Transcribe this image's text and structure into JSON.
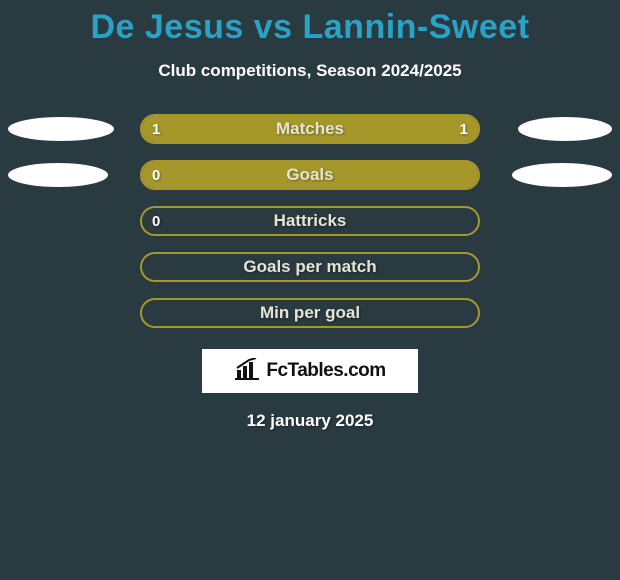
{
  "title": "De Jesus vs Lannin-Sweet",
  "subtitle": "Club competitions, Season 2024/2025",
  "date": "12 january 2025",
  "logo_text": "FcTables.com",
  "colors": {
    "background": "#2a3a41",
    "title": "#29a2c6",
    "bar_fill": "#a6972b",
    "bar_border": "#a6972b",
    "bar_label": "#e3e6d3",
    "value_text": "#ffffff",
    "ellipse": "#ffffff"
  },
  "rows": [
    {
      "label": "Matches",
      "left_value": "1",
      "right_value": "1",
      "fill_pct": 100,
      "ellipse_left_width": 106,
      "ellipse_right_width": 94
    },
    {
      "label": "Goals",
      "left_value": "0",
      "right_value": "",
      "fill_pct": 100,
      "ellipse_left_width": 100,
      "ellipse_right_width": 100
    },
    {
      "label": "Hattricks",
      "left_value": "0",
      "right_value": "",
      "fill_pct": 0,
      "ellipse_left_width": 0,
      "ellipse_right_width": 0
    },
    {
      "label": "Goals per match",
      "left_value": "",
      "right_value": "",
      "fill_pct": 0,
      "ellipse_left_width": 0,
      "ellipse_right_width": 0
    },
    {
      "label": "Min per goal",
      "left_value": "",
      "right_value": "",
      "fill_pct": 0,
      "ellipse_left_width": 0,
      "ellipse_right_width": 0
    }
  ]
}
